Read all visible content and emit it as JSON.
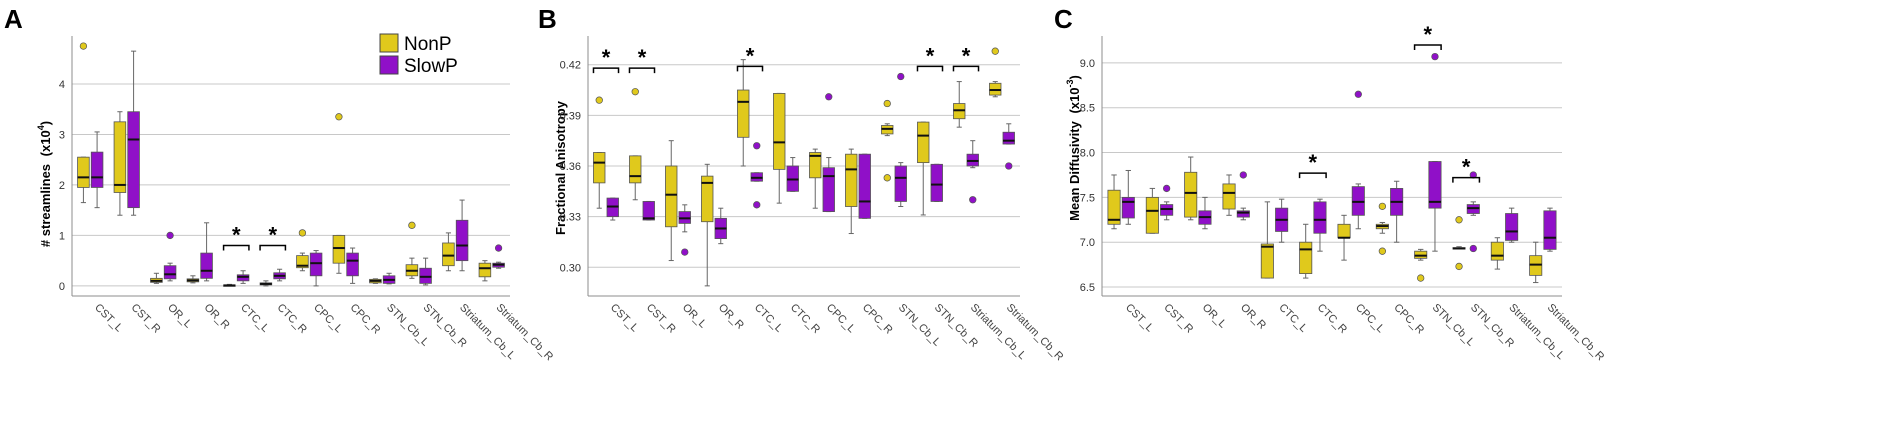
{
  "colors": {
    "NonP": "#e0c91c",
    "SlowP": "#9010c8",
    "grid": "#c8c8c8",
    "axis": "#8c8c8c"
  },
  "legend": {
    "items": [
      "NonP",
      "SlowP"
    ]
  },
  "chart_data": [
    {
      "type": "box",
      "panel_label": "A",
      "title": "",
      "ylabel": "# streamlines",
      "ylabel_units": "(x10",
      "ylabel_exp": "4",
      "ylabel_close": ")",
      "ylim": [
        -0.2,
        4.95
      ],
      "yticks": [
        0,
        1,
        2,
        3,
        4
      ],
      "categories": [
        "CST_L",
        "CST_R",
        "OR_L",
        "OR_R",
        "CTC_L",
        "CTC_R",
        "CPC_L",
        "CPC_R",
        "STN_Cb_L",
        "STN_Cb_R",
        "Striatum_Cb_L",
        "Striatum_Cb_R"
      ],
      "series": [
        {
          "name": "NonP",
          "boxes": [
            {
              "whislo": 1.65,
              "q1": 1.95,
              "med": 2.15,
              "q3": 2.55,
              "whishi": 2.55,
              "fliers": [
                4.75
              ]
            },
            {
              "whislo": 1.4,
              "q1": 1.85,
              "med": 2.0,
              "q3": 3.25,
              "whishi": 3.45,
              "fliers": []
            },
            {
              "whislo": 0.05,
              "q1": 0.07,
              "med": 0.1,
              "q3": 0.15,
              "whishi": 0.25,
              "fliers": []
            },
            {
              "whislo": 0.06,
              "q1": 0.08,
              "med": 0.11,
              "q3": 0.14,
              "whishi": 0.2,
              "fliers": []
            },
            {
              "whislo": 0.0,
              "q1": 0.0,
              "med": 0.01,
              "q3": 0.02,
              "whishi": 0.03,
              "fliers": []
            },
            {
              "whislo": 0.0,
              "q1": 0.02,
              "med": 0.04,
              "q3": 0.06,
              "whishi": 0.1,
              "fliers": []
            },
            {
              "whislo": 0.3,
              "q1": 0.36,
              "med": 0.4,
              "q3": 0.6,
              "whishi": 0.65,
              "fliers": [
                1.05
              ]
            },
            {
              "whislo": 0.25,
              "q1": 0.45,
              "med": 0.75,
              "q3": 1.0,
              "whishi": 1.0,
              "fliers": [
                3.35
              ]
            },
            {
              "whislo": 0.05,
              "q1": 0.06,
              "med": 0.1,
              "q3": 0.13,
              "whishi": 0.14,
              "fliers": []
            },
            {
              "whislo": 0.15,
              "q1": 0.2,
              "med": 0.3,
              "q3": 0.42,
              "whishi": 0.55,
              "fliers": [
                1.2
              ]
            },
            {
              "whislo": 0.3,
              "q1": 0.4,
              "med": 0.6,
              "q3": 0.85,
              "whishi": 1.05,
              "fliers": []
            },
            {
              "whislo": 0.1,
              "q1": 0.18,
              "med": 0.35,
              "q3": 0.45,
              "whishi": 0.5,
              "fliers": []
            }
          ]
        },
        {
          "name": "SlowP",
          "boxes": [
            {
              "whislo": 1.55,
              "q1": 1.95,
              "med": 2.15,
              "q3": 2.65,
              "whishi": 3.05,
              "fliers": []
            },
            {
              "whislo": 1.4,
              "q1": 1.55,
              "med": 2.9,
              "q3": 3.45,
              "whishi": 4.65,
              "fliers": []
            },
            {
              "whislo": 0.1,
              "q1": 0.14,
              "med": 0.23,
              "q3": 0.4,
              "whishi": 0.45,
              "fliers": [
                1.0
              ]
            },
            {
              "whislo": 0.1,
              "q1": 0.15,
              "med": 0.3,
              "q3": 0.65,
              "whishi": 1.25,
              "fliers": []
            },
            {
              "whislo": 0.05,
              "q1": 0.1,
              "med": 0.18,
              "q3": 0.22,
              "whishi": 0.3,
              "fliers": []
            },
            {
              "whislo": 0.1,
              "q1": 0.14,
              "med": 0.2,
              "q3": 0.26,
              "whishi": 0.33,
              "fliers": []
            },
            {
              "whislo": 0.0,
              "q1": 0.2,
              "med": 0.45,
              "q3": 0.65,
              "whishi": 0.7,
              "fliers": []
            },
            {
              "whislo": 0.05,
              "q1": 0.2,
              "med": 0.5,
              "q3": 0.65,
              "whishi": 0.75,
              "fliers": []
            },
            {
              "whislo": 0.04,
              "q1": 0.05,
              "med": 0.12,
              "q3": 0.2,
              "whishi": 0.25,
              "fliers": []
            },
            {
              "whislo": 0.02,
              "q1": 0.05,
              "med": 0.18,
              "q3": 0.35,
              "whishi": 0.55,
              "fliers": []
            },
            {
              "whislo": 0.3,
              "q1": 0.5,
              "med": 0.8,
              "q3": 1.3,
              "whishi": 1.7,
              "fliers": []
            },
            {
              "whislo": 0.35,
              "q1": 0.37,
              "med": 0.42,
              "q3": 0.45,
              "whishi": 0.47,
              "fliers": [
                0.75
              ]
            }
          ]
        }
      ],
      "significance": [
        {
          "category": "CTC_L",
          "label": "*",
          "y": 0.8
        },
        {
          "category": "CTC_R",
          "label": "*",
          "y": 0.8
        }
      ]
    },
    {
      "type": "box",
      "panel_label": "B",
      "title": "",
      "ylabel": "Fractional Anisotropy",
      "ylim": [
        0.283,
        0.437
      ],
      "yticks": [
        0.3,
        0.33,
        0.36,
        0.39,
        0.42
      ],
      "ytick_labels": [
        "0.30",
        "0.33",
        "0.36",
        "0.39",
        "0.42"
      ],
      "categories": [
        "CST_L",
        "CST_R",
        "OR_L",
        "OR_R",
        "CTC_L",
        "CTC_R",
        "CPC_L",
        "CPC_R",
        "STN_Cb_L",
        "STN_Cb_R",
        "Striatum_Cb_L",
        "Striatum_Cb_R"
      ],
      "series": [
        {
          "name": "NonP",
          "boxes": [
            {
              "whislo": 0.335,
              "q1": 0.35,
              "med": 0.362,
              "q3": 0.368,
              "whishi": 0.368,
              "fliers": [
                0.399
              ]
            },
            {
              "whislo": 0.34,
              "q1": 0.35,
              "med": 0.354,
              "q3": 0.366,
              "whishi": 0.366,
              "fliers": [
                0.404
              ]
            },
            {
              "whislo": 0.304,
              "q1": 0.324,
              "med": 0.343,
              "q3": 0.36,
              "whishi": 0.375,
              "fliers": []
            },
            {
              "whislo": 0.289,
              "q1": 0.327,
              "med": 0.35,
              "q3": 0.354,
              "whishi": 0.361,
              "fliers": []
            },
            {
              "whislo": 0.36,
              "q1": 0.377,
              "med": 0.398,
              "q3": 0.405,
              "whishi": 0.423,
              "fliers": []
            },
            {
              "whislo": 0.338,
              "q1": 0.358,
              "med": 0.374,
              "q3": 0.403,
              "whishi": 0.403,
              "fliers": []
            },
            {
              "whislo": 0.335,
              "q1": 0.353,
              "med": 0.366,
              "q3": 0.368,
              "whishi": 0.37,
              "fliers": []
            },
            {
              "whislo": 0.32,
              "q1": 0.336,
              "med": 0.358,
              "q3": 0.367,
              "whishi": 0.37,
              "fliers": []
            },
            {
              "whislo": 0.378,
              "q1": 0.379,
              "med": 0.382,
              "q3": 0.384,
              "whishi": 0.385,
              "fliers": [
                0.397,
                0.353
              ]
            },
            {
              "whislo": 0.331,
              "q1": 0.362,
              "med": 0.378,
              "q3": 0.386,
              "whishi": 0.386,
              "fliers": []
            },
            {
              "whislo": 0.383,
              "q1": 0.388,
              "med": 0.393,
              "q3": 0.397,
              "whishi": 0.41,
              "fliers": []
            },
            {
              "whislo": 0.401,
              "q1": 0.402,
              "med": 0.405,
              "q3": 0.409,
              "whishi": 0.41,
              "fliers": [
                0.428
              ]
            }
          ]
        },
        {
          "name": "SlowP",
          "boxes": [
            {
              "whislo": 0.328,
              "q1": 0.33,
              "med": 0.336,
              "q3": 0.341,
              "whishi": 0.341,
              "fliers": []
            },
            {
              "whislo": 0.328,
              "q1": 0.328,
              "med": 0.329,
              "q3": 0.339,
              "whishi": 0.339,
              "fliers": []
            },
            {
              "whislo": 0.321,
              "q1": 0.326,
              "med": 0.329,
              "q3": 0.333,
              "whishi": 0.337,
              "fliers": [
                0.309
              ]
            },
            {
              "whislo": 0.314,
              "q1": 0.317,
              "med": 0.323,
              "q3": 0.329,
              "whishi": 0.335,
              "fliers": []
            },
            {
              "whislo": 0.351,
              "q1": 0.351,
              "med": 0.353,
              "q3": 0.356,
              "whishi": 0.356,
              "fliers": [
                0.372,
                0.337
              ]
            },
            {
              "whislo": 0.345,
              "q1": 0.345,
              "med": 0.352,
              "q3": 0.36,
              "whishi": 0.365,
              "fliers": []
            },
            {
              "whislo": 0.333,
              "q1": 0.333,
              "med": 0.354,
              "q3": 0.359,
              "whishi": 0.365,
              "fliers": [
                0.401
              ]
            },
            {
              "whislo": 0.329,
              "q1": 0.329,
              "med": 0.339,
              "q3": 0.367,
              "whishi": 0.367,
              "fliers": []
            },
            {
              "whislo": 0.336,
              "q1": 0.339,
              "med": 0.353,
              "q3": 0.36,
              "whishi": 0.362,
              "fliers": [
                0.413
              ]
            },
            {
              "whislo": 0.339,
              "q1": 0.339,
              "med": 0.349,
              "q3": 0.361,
              "whishi": 0.361,
              "fliers": []
            },
            {
              "whislo": 0.359,
              "q1": 0.36,
              "med": 0.363,
              "q3": 0.367,
              "whishi": 0.375,
              "fliers": [
                0.34
              ]
            },
            {
              "whislo": 0.373,
              "q1": 0.373,
              "med": 0.375,
              "q3": 0.38,
              "whishi": 0.385,
              "fliers": [
                0.36
              ]
            }
          ]
        }
      ],
      "significance": [
        {
          "category": "CST_L",
          "label": "*",
          "y": 0.418
        },
        {
          "category": "CST_R",
          "label": "*",
          "y": 0.418
        },
        {
          "category": "CTC_L",
          "label": "*",
          "y": 0.419
        },
        {
          "category": "STN_Cb_R",
          "label": "*",
          "y": 0.419
        },
        {
          "category": "Striatum_Cb_L",
          "label": "*",
          "y": 0.419
        }
      ]
    },
    {
      "type": "box",
      "panel_label": "C",
      "title": "",
      "ylabel": "Mean Diffusivity",
      "ylabel_units": "(x10",
      "ylabel_exp": "-3",
      "ylabel_close": ")",
      "ylim": [
        6.4,
        9.3
      ],
      "yticks": [
        6.5,
        7.0,
        7.5,
        8.0,
        8.5,
        9.0
      ],
      "ytick_labels": [
        "6.5",
        "7.0",
        "7.5",
        "8.0",
        "8.5",
        "9.0"
      ],
      "categories": [
        "CST_L",
        "CST_R",
        "OR_L",
        "OR_R",
        "CTC_L",
        "CTC_R",
        "CPC_L",
        "CPC_R",
        "STN_Cb_L",
        "STN_Cb_R",
        "Striatum_Cb_L",
        "Striatum_Cb_R"
      ],
      "series": [
        {
          "name": "NonP",
          "boxes": [
            {
              "whislo": 7.15,
              "q1": 7.2,
              "med": 7.25,
              "q3": 7.58,
              "whishi": 7.75,
              "fliers": []
            },
            {
              "whislo": 7.1,
              "q1": 7.1,
              "med": 7.35,
              "q3": 7.5,
              "whishi": 7.6,
              "fliers": []
            },
            {
              "whislo": 7.25,
              "q1": 7.28,
              "med": 7.55,
              "q3": 7.78,
              "whishi": 7.95,
              "fliers": []
            },
            {
              "whislo": 7.3,
              "q1": 7.37,
              "med": 7.55,
              "q3": 7.65,
              "whishi": 7.75,
              "fliers": []
            },
            {
              "whislo": 6.6,
              "q1": 6.6,
              "med": 6.95,
              "q3": 6.98,
              "whishi": 7.45,
              "fliers": []
            },
            {
              "whislo": 6.6,
              "q1": 6.65,
              "med": 6.92,
              "q3": 7.0,
              "whishi": 7.2,
              "fliers": []
            },
            {
              "whislo": 6.8,
              "q1": 7.05,
              "med": 7.05,
              "q3": 7.2,
              "whishi": 7.3,
              "fliers": []
            },
            {
              "whislo": 7.1,
              "q1": 7.15,
              "med": 7.18,
              "q3": 7.2,
              "whishi": 7.22,
              "fliers": [
                7.4,
                6.9
              ]
            },
            {
              "whislo": 6.8,
              "q1": 6.82,
              "med": 6.85,
              "q3": 6.9,
              "whishi": 6.92,
              "fliers": [
                6.6
              ]
            },
            {
              "whislo": 6.93,
              "q1": 6.93,
              "med": 6.93,
              "q3": 6.94,
              "whishi": 6.95,
              "fliers": [
                7.25,
                6.73
              ]
            },
            {
              "whislo": 6.7,
              "q1": 6.8,
              "med": 6.85,
              "q3": 7.0,
              "whishi": 7.05,
              "fliers": []
            },
            {
              "whislo": 6.55,
              "q1": 6.63,
              "med": 6.75,
              "q3": 6.85,
              "whishi": 7.0,
              "fliers": []
            }
          ]
        },
        {
          "name": "SlowP",
          "boxes": [
            {
              "whislo": 7.2,
              "q1": 7.27,
              "med": 7.45,
              "q3": 7.5,
              "whishi": 7.8,
              "fliers": []
            },
            {
              "whislo": 7.25,
              "q1": 7.3,
              "med": 7.37,
              "q3": 7.42,
              "whishi": 7.45,
              "fliers": [
                7.6
              ]
            },
            {
              "whislo": 7.15,
              "q1": 7.2,
              "med": 7.28,
              "q3": 7.35,
              "whishi": 7.5,
              "fliers": []
            },
            {
              "whislo": 7.25,
              "q1": 7.28,
              "med": 7.33,
              "q3": 7.35,
              "whishi": 7.38,
              "fliers": [
                7.75
              ]
            },
            {
              "whislo": 7.0,
              "q1": 7.12,
              "med": 7.25,
              "q3": 7.38,
              "whishi": 7.48,
              "fliers": []
            },
            {
              "whislo": 6.9,
              "q1": 7.1,
              "med": 7.25,
              "q3": 7.45,
              "whishi": 7.48,
              "fliers": []
            },
            {
              "whislo": 7.15,
              "q1": 7.3,
              "med": 7.45,
              "q3": 7.62,
              "whishi": 7.65,
              "fliers": [
                8.65
              ]
            },
            {
              "whislo": 7.0,
              "q1": 7.3,
              "med": 7.45,
              "q3": 7.6,
              "whishi": 7.68,
              "fliers": []
            },
            {
              "whislo": 6.9,
              "q1": 7.38,
              "med": 7.45,
              "q3": 7.9,
              "whishi": 7.9,
              "fliers": [
                9.07
              ]
            },
            {
              "whislo": 7.3,
              "q1": 7.32,
              "med": 7.38,
              "q3": 7.42,
              "whishi": 7.45,
              "fliers": [
                7.75,
                6.93
              ]
            },
            {
              "whislo": 7.0,
              "q1": 7.02,
              "med": 7.12,
              "q3": 7.32,
              "whishi": 7.38,
              "fliers": []
            },
            {
              "whislo": 6.9,
              "q1": 6.92,
              "med": 7.05,
              "q3": 7.35,
              "whishi": 7.38,
              "fliers": []
            }
          ]
        }
      ],
      "significance": [
        {
          "category": "CTC_R",
          "label": "*",
          "y": 7.77
        },
        {
          "category": "STN_Cb_L",
          "label": "*",
          "y": 9.2
        },
        {
          "category": "STN_Cb_R",
          "label": "*",
          "y": 7.72
        }
      ]
    }
  ]
}
